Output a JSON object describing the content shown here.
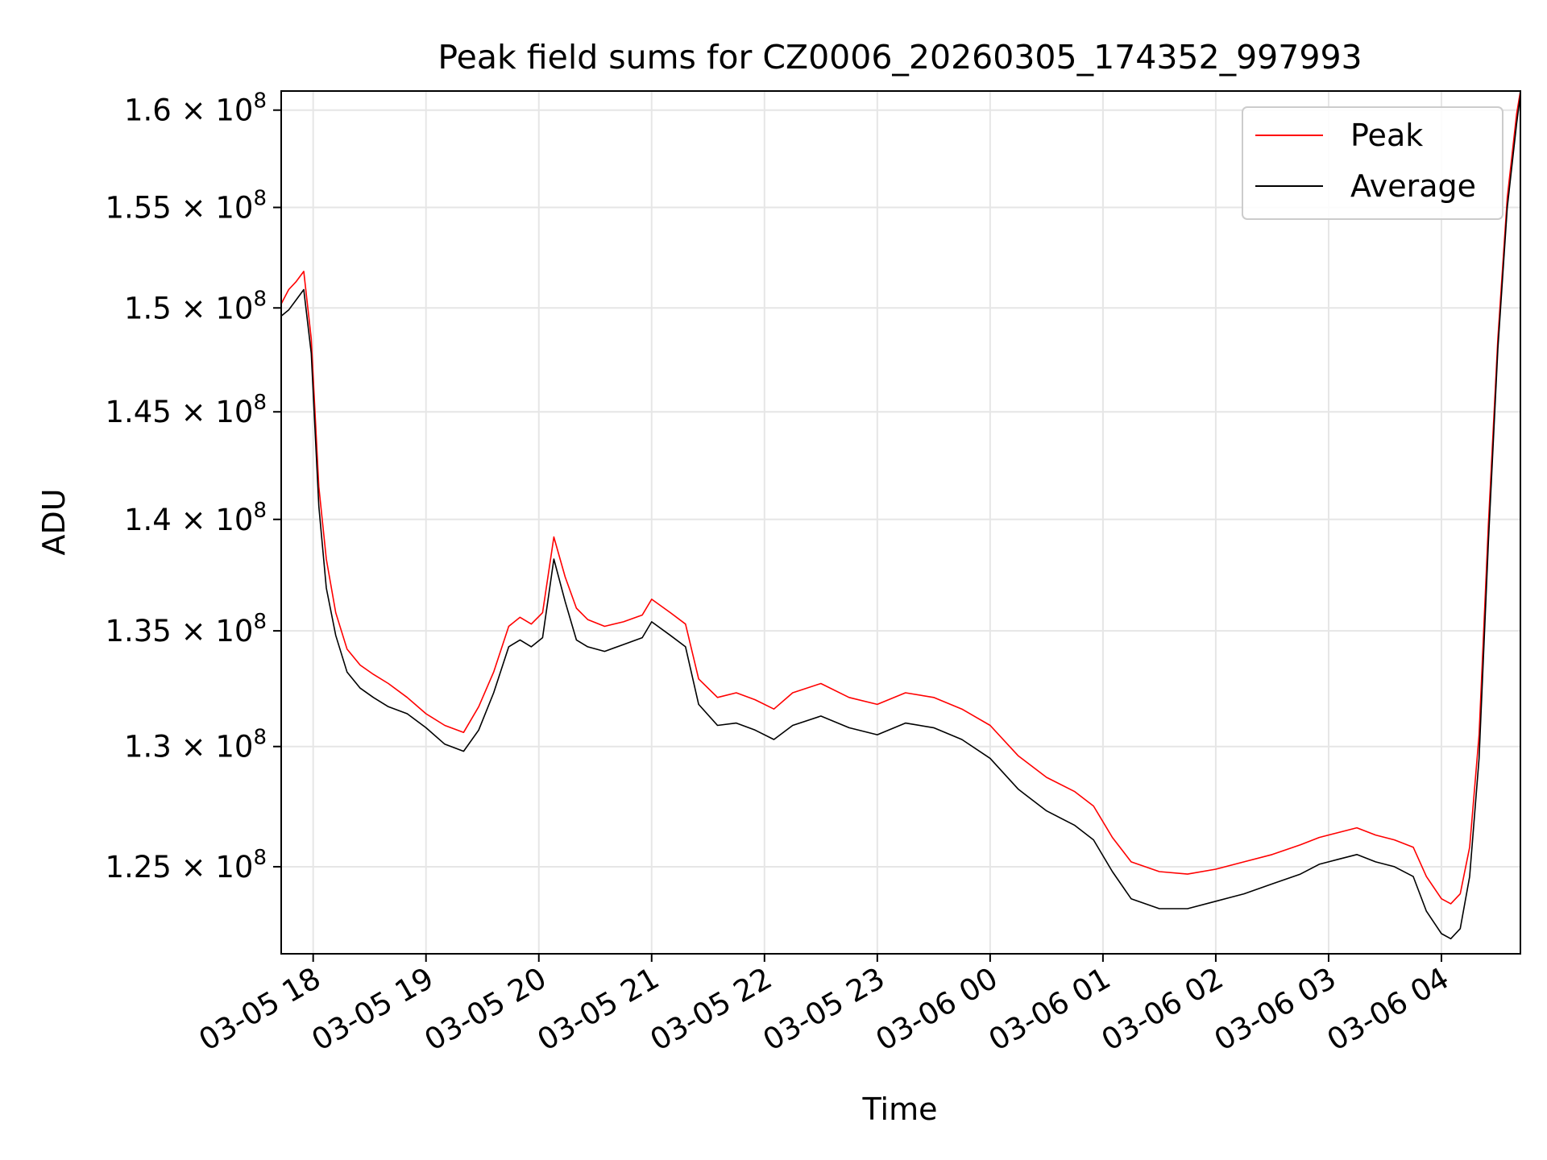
{
  "chart_data": {
    "type": "line",
    "title": "Peak field sums for CZ0006_20260305_174352_997993",
    "xlabel": "Time",
    "ylabel": "ADU",
    "yscale": "log",
    "grid": true,
    "legend_position": "top-right",
    "xlim": [
      "2026-03-05 17:43",
      "2026-03-06 04:42"
    ],
    "ylim": [
      121500000,
      161000000
    ],
    "x_ticks": [
      {
        "t": "2026-03-05 18:00",
        "label": "03-05 18"
      },
      {
        "t": "2026-03-05 19:00",
        "label": "03-05 19"
      },
      {
        "t": "2026-03-05 20:00",
        "label": "03-05 20"
      },
      {
        "t": "2026-03-05 21:00",
        "label": "03-05 21"
      },
      {
        "t": "2026-03-05 22:00",
        "label": "03-05 22"
      },
      {
        "t": "2026-03-05 23:00",
        "label": "03-05 23"
      },
      {
        "t": "2026-03-06 00:00",
        "label": "03-06 00"
      },
      {
        "t": "2026-03-06 01:00",
        "label": "03-06 01"
      },
      {
        "t": "2026-03-06 02:00",
        "label": "03-06 02"
      },
      {
        "t": "2026-03-06 03:00",
        "label": "03-06 03"
      },
      {
        "t": "2026-03-06 04:00",
        "label": "03-06 04"
      }
    ],
    "y_ticks": [
      {
        "value": 125000000,
        "mantissa": "1.25",
        "exponent": "8"
      },
      {
        "value": 130000000,
        "mantissa": "1.3",
        "exponent": "8"
      },
      {
        "value": 135000000,
        "mantissa": "1.35",
        "exponent": "8"
      },
      {
        "value": 140000000,
        "mantissa": "1.4",
        "exponent": "8"
      },
      {
        "value": 145000000,
        "mantissa": "1.45",
        "exponent": "8"
      },
      {
        "value": 150000000,
        "mantissa": "1.5",
        "exponent": "8"
      },
      {
        "value": 155000000,
        "mantissa": "1.55",
        "exponent": "8"
      },
      {
        "value": 160000000,
        "mantissa": "1.6",
        "exponent": "8"
      }
    ],
    "series": [
      {
        "name": "Peak",
        "color": "#ff0000",
        "x": [
          "2026-03-05 17:43",
          "2026-03-05 17:47",
          "2026-03-05 17:51",
          "2026-03-05 17:55",
          "2026-03-05 17:59",
          "2026-03-05 18:03",
          "2026-03-05 18:07",
          "2026-03-05 18:12",
          "2026-03-05 18:18",
          "2026-03-05 18:25",
          "2026-03-05 18:32",
          "2026-03-05 18:40",
          "2026-03-05 18:50",
          "2026-03-05 19:00",
          "2026-03-05 19:10",
          "2026-03-05 19:20",
          "2026-03-05 19:28",
          "2026-03-05 19:36",
          "2026-03-05 19:44",
          "2026-03-05 19:50",
          "2026-03-05 19:56",
          "2026-03-05 20:02",
          "2026-03-05 20:08",
          "2026-03-05 20:14",
          "2026-03-05 20:20",
          "2026-03-05 20:26",
          "2026-03-05 20:35",
          "2026-03-05 20:45",
          "2026-03-05 20:55",
          "2026-03-05 21:00",
          "2026-03-05 21:10",
          "2026-03-05 21:18",
          "2026-03-05 21:25",
          "2026-03-05 21:35",
          "2026-03-05 21:45",
          "2026-03-05 21:55",
          "2026-03-05 22:05",
          "2026-03-05 22:15",
          "2026-03-05 22:30",
          "2026-03-05 22:45",
          "2026-03-05 23:00",
          "2026-03-05 23:15",
          "2026-03-05 23:30",
          "2026-03-05 23:45",
          "2026-03-06 00:00",
          "2026-03-06 00:15",
          "2026-03-06 00:30",
          "2026-03-06 00:45",
          "2026-03-06 00:55",
          "2026-03-06 01:05",
          "2026-03-06 01:15",
          "2026-03-06 01:30",
          "2026-03-06 01:45",
          "2026-03-06 02:00",
          "2026-03-06 02:15",
          "2026-03-06 02:30",
          "2026-03-06 02:45",
          "2026-03-06 02:55",
          "2026-03-06 03:05",
          "2026-03-06 03:15",
          "2026-03-06 03:25",
          "2026-03-06 03:35",
          "2026-03-06 03:45",
          "2026-03-06 03:52",
          "2026-03-06 04:00",
          "2026-03-06 04:05",
          "2026-03-06 04:10",
          "2026-03-06 04:15",
          "2026-03-06 04:20",
          "2026-03-06 04:25",
          "2026-03-06 04:30",
          "2026-03-06 04:35",
          "2026-03-06 04:40",
          "2026-03-06 04:42"
        ],
        "values": [
          150200000,
          150900000,
          151300000,
          151800000,
          148500000,
          141500000,
          138200000,
          135800000,
          134200000,
          133500000,
          133100000,
          132700000,
          132100000,
          131400000,
          130900000,
          130600000,
          131700000,
          133200000,
          135200000,
          135600000,
          135300000,
          135800000,
          139200000,
          137400000,
          136000000,
          135500000,
          135200000,
          135400000,
          135700000,
          136400000,
          135800000,
          135300000,
          132900000,
          132100000,
          132300000,
          132000000,
          131600000,
          132300000,
          132700000,
          132100000,
          131800000,
          132300000,
          132100000,
          131600000,
          130900000,
          129600000,
          128700000,
          128100000,
          127500000,
          126200000,
          125200000,
          124800000,
          124700000,
          124900000,
          125200000,
          125500000,
          125900000,
          126200000,
          126400000,
          126600000,
          126300000,
          126100000,
          125800000,
          124600000,
          123700000,
          123500000,
          123900000,
          125800000,
          130500000,
          139800000,
          148500000,
          155500000,
          159800000,
          161000000
        ]
      },
      {
        "name": "Average",
        "color": "#000000",
        "x": [
          "2026-03-05 17:43",
          "2026-03-05 17:47",
          "2026-03-05 17:51",
          "2026-03-05 17:55",
          "2026-03-05 17:59",
          "2026-03-05 18:03",
          "2026-03-05 18:07",
          "2026-03-05 18:12",
          "2026-03-05 18:18",
          "2026-03-05 18:25",
          "2026-03-05 18:32",
          "2026-03-05 18:40",
          "2026-03-05 18:50",
          "2026-03-05 19:00",
          "2026-03-05 19:10",
          "2026-03-05 19:20",
          "2026-03-05 19:28",
          "2026-03-05 19:36",
          "2026-03-05 19:44",
          "2026-03-05 19:50",
          "2026-03-05 19:56",
          "2026-03-05 20:02",
          "2026-03-05 20:08",
          "2026-03-05 20:14",
          "2026-03-05 20:20",
          "2026-03-05 20:26",
          "2026-03-05 20:35",
          "2026-03-05 20:45",
          "2026-03-05 20:55",
          "2026-03-05 21:00",
          "2026-03-05 21:10",
          "2026-03-05 21:18",
          "2026-03-05 21:25",
          "2026-03-05 21:35",
          "2026-03-05 21:45",
          "2026-03-05 21:55",
          "2026-03-05 22:05",
          "2026-03-05 22:15",
          "2026-03-05 22:30",
          "2026-03-05 22:45",
          "2026-03-05 23:00",
          "2026-03-05 23:15",
          "2026-03-05 23:30",
          "2026-03-05 23:45",
          "2026-03-06 00:00",
          "2026-03-06 00:15",
          "2026-03-06 00:30",
          "2026-03-06 00:45",
          "2026-03-06 00:55",
          "2026-03-06 01:05",
          "2026-03-06 01:15",
          "2026-03-06 01:30",
          "2026-03-06 01:45",
          "2026-03-06 02:00",
          "2026-03-06 02:15",
          "2026-03-06 02:30",
          "2026-03-06 02:45",
          "2026-03-06 02:55",
          "2026-03-06 03:05",
          "2026-03-06 03:15",
          "2026-03-06 03:25",
          "2026-03-06 03:35",
          "2026-03-06 03:45",
          "2026-03-06 03:52",
          "2026-03-06 04:00",
          "2026-03-06 04:05",
          "2026-03-06 04:10",
          "2026-03-06 04:15",
          "2026-03-06 04:20",
          "2026-03-06 04:25",
          "2026-03-06 04:30",
          "2026-03-06 04:35",
          "2026-03-06 04:40",
          "2026-03-06 04:42"
        ],
        "values": [
          149600000,
          149900000,
          150400000,
          150900000,
          147800000,
          140600000,
          136900000,
          134800000,
          133200000,
          132500000,
          132100000,
          131700000,
          131400000,
          130800000,
          130100000,
          129800000,
          130700000,
          132300000,
          134300000,
          134600000,
          134300000,
          134700000,
          138200000,
          136300000,
          134600000,
          134300000,
          134100000,
          134400000,
          134700000,
          135400000,
          134800000,
          134300000,
          131800000,
          130900000,
          131000000,
          130700000,
          130300000,
          130900000,
          131300000,
          130800000,
          130500000,
          131000000,
          130800000,
          130300000,
          129500000,
          128200000,
          127300000,
          126700000,
          126100000,
          124800000,
          123700000,
          123300000,
          123300000,
          123600000,
          123900000,
          124300000,
          124700000,
          125100000,
          125300000,
          125500000,
          125200000,
          125000000,
          124600000,
          123200000,
          122300000,
          122100000,
          122500000,
          124600000,
          129500000,
          139000000,
          148000000,
          155000000,
          159300000,
          160800000
        ]
      }
    ]
  }
}
